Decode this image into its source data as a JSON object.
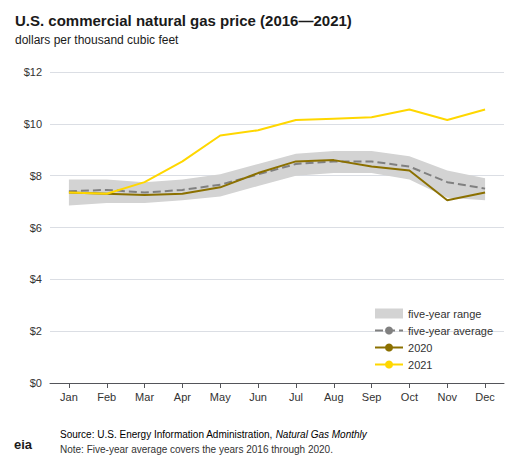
{
  "chart_data": {
    "type": "line",
    "title": "U.S. commercial natural gas price (2016—2021)",
    "subtitle": "dollars per thousand cubic feet",
    "categories": [
      "Jan",
      "Feb",
      "Mar",
      "Apr",
      "May",
      "Jun",
      "Jul",
      "Aug",
      "Sep",
      "Oct",
      "Nov",
      "Dec"
    ],
    "series": [
      {
        "name": "five-year range",
        "type": "range",
        "color": "#d3d3d3",
        "min": [
          6.85,
          6.95,
          6.95,
          7.05,
          7.2,
          7.6,
          8.0,
          8.1,
          8.1,
          7.85,
          7.15,
          7.05
        ],
        "max": [
          7.85,
          7.85,
          7.75,
          7.85,
          8.05,
          8.45,
          8.85,
          8.95,
          8.95,
          8.75,
          8.2,
          7.9
        ]
      },
      {
        "name": "five-year average",
        "type": "line",
        "color": "#808080",
        "line_style": "dashed",
        "values": [
          7.4,
          7.45,
          7.35,
          7.45,
          7.65,
          8.05,
          8.45,
          8.55,
          8.55,
          8.35,
          7.75,
          7.5
        ]
      },
      {
        "name": "2020",
        "type": "line",
        "color": "#8B7000",
        "line_style": "solid",
        "values": [
          7.35,
          7.3,
          7.25,
          7.3,
          7.55,
          8.1,
          8.55,
          8.6,
          8.35,
          8.2,
          7.05,
          7.35
        ]
      },
      {
        "name": "2021",
        "type": "line",
        "color": "#FFD700",
        "line_style": "solid",
        "values": [
          7.35,
          7.3,
          7.75,
          8.55,
          9.55,
          9.75,
          10.15,
          10.2,
          10.25,
          10.55,
          10.15,
          10.55
        ]
      }
    ],
    "ylim": [
      0,
      12
    ],
    "yticks": [
      {
        "value": 0,
        "label": "$0"
      },
      {
        "value": 2,
        "label": "$2"
      },
      {
        "value": 4,
        "label": "$4"
      },
      {
        "value": 6,
        "label": "$6"
      },
      {
        "value": 8,
        "label": "$8"
      },
      {
        "value": 10,
        "label": "$10"
      },
      {
        "value": 12,
        "label": "$12"
      }
    ],
    "grid": true,
    "legend": "lower right",
    "annotations": [
      "eia",
      "Source: U.S. Energy Information Administration, ",
      "Natural Gas Monthly",
      "Note: Five-year average covers the years 2016 through 2020."
    ]
  }
}
